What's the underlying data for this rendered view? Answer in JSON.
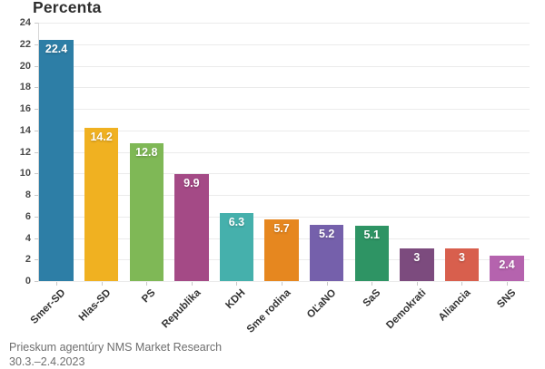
{
  "source": {
    "line1": "Prieskum agentúry NMS Market Research",
    "line2": "30.3.–2.4.2023"
  },
  "chart_data": {
    "type": "bar",
    "title": "Percenta",
    "categories": [
      "Smer-SD",
      "Hlas-SD",
      "PS",
      "Republika",
      "KDH",
      "Sme rodina",
      "OĽaNO",
      "SaS",
      "Demokrati",
      "Aliancia",
      "SNS"
    ],
    "values": [
      22.4,
      14.2,
      12.8,
      9.9,
      6.3,
      5.7,
      5.2,
      5.1,
      3,
      3,
      2.4
    ],
    "value_labels": [
      "22.4",
      "14.2",
      "12.8",
      "9.9",
      "6.3",
      "5.7",
      "5.2",
      "5.1",
      "3",
      "3",
      "2.4"
    ],
    "bar_colors": [
      "#2d7ea6",
      "#f0b121",
      "#7fb856",
      "#a44a86",
      "#45b0ac",
      "#e6871f",
      "#7560ab",
      "#2e9464",
      "#7c4b7e",
      "#d85f4d",
      "#b563ae"
    ],
    "xlabel": "",
    "ylabel": "",
    "ylim": [
      0,
      24
    ],
    "ytick_step": 2,
    "grid": true,
    "legend_position": "none",
    "value_label_position": "inside-top",
    "value_label_color": "#ffffff",
    "source": "Prieskum agentúry NMS Market Research 30.3.–2.4.2023"
  },
  "colors": {
    "background": "#ffffff",
    "grid": "#ebebeb",
    "axis": "#d6d6d6",
    "tick": "#c9c9c9",
    "title_text": "#2e2e2e",
    "tick_label_text": "#4a4a4a",
    "category_label_text": "#333333",
    "source_text": "#6e6e6e"
  }
}
